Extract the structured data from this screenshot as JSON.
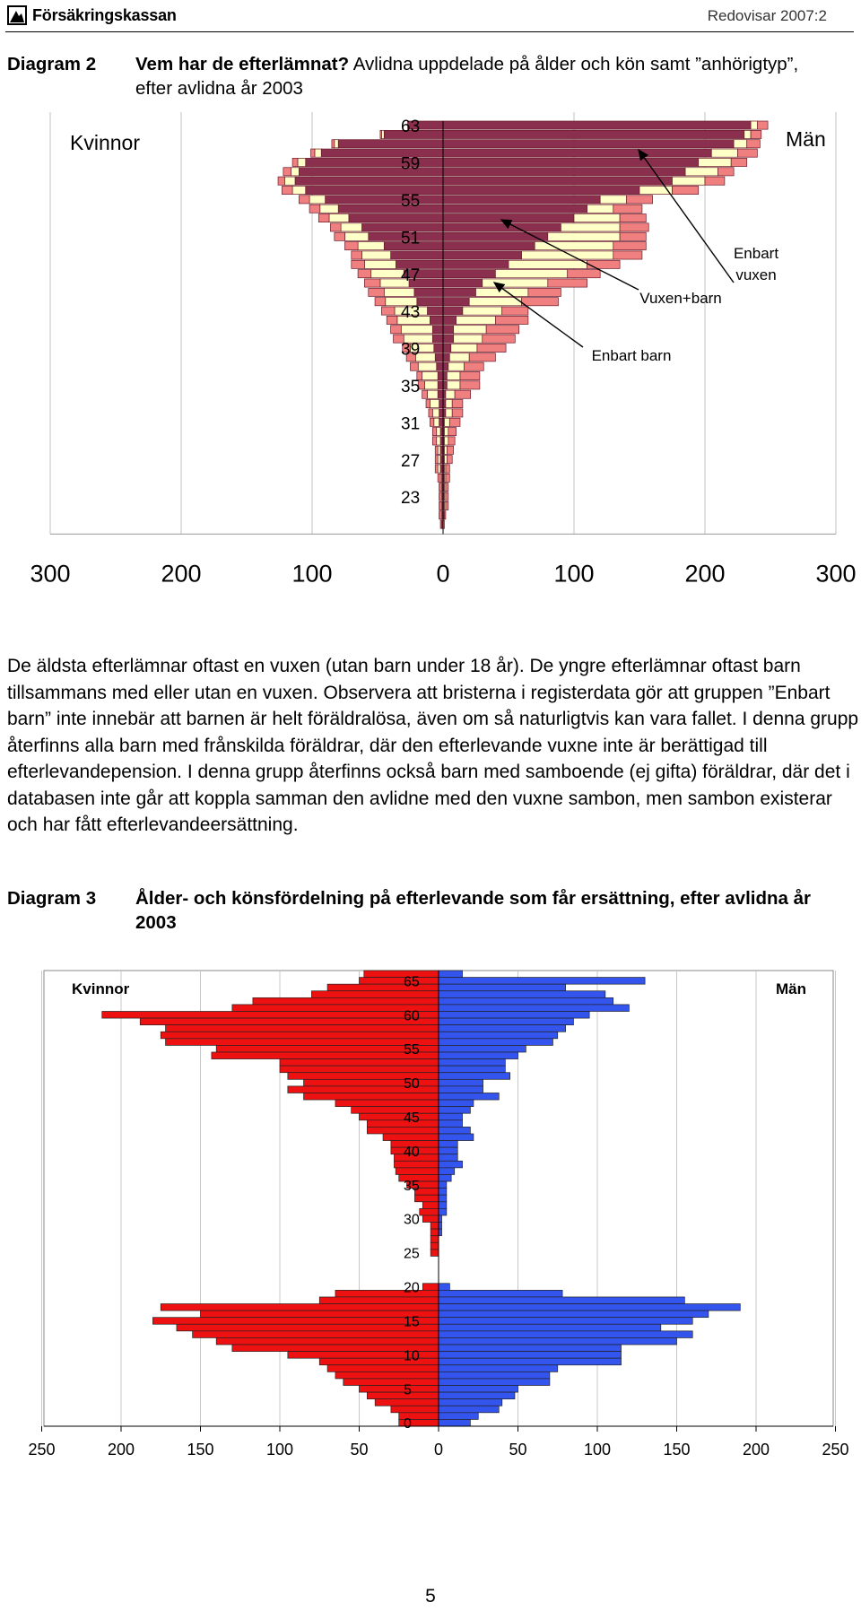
{
  "header": {
    "logo_text": "Försäkringskassan",
    "report_id": "Redovisar 2007:2"
  },
  "diagram2": {
    "number": "Diagram 2",
    "title_bold": "Vem har de efterlämnat?",
    "title_rest": " Avlidna uppdelade på ålder och kön samt ”anhörigtyp”, efter avlidna år 2003"
  },
  "diagram3": {
    "number": "Diagram 3",
    "title": "Ålder- och könsfördelning på efterlevande som får ersättning, efter avlidna år 2003"
  },
  "body_text": "De äldsta efterlämnar oftast en vuxen (utan barn under 18 år). De yngre efterlämnar oftast barn tillsammans med eller utan en vuxen. Observera att bristerna i registerdata gör att gruppen ”Enbart barn” inte innebär att barnen är helt föräldralösa, även om så naturligtvis kan vara fallet. I denna grupp återfinns alla barn med frånskilda föräldrar, där den efterlevande vuxne inte är berättigad till efterlevandepension. I denna grupp återfinns också barn med samboende (ej gifta) föräldrar, där det i databasen inte går att koppla samman den avlidne med den vuxne sambon, men sambon existerar och har fått efterlevandeersättning.",
  "page_number": "5",
  "colors": {
    "enbart_vuxen": "#8B2F4E",
    "vuxen_barn": "#FFFFC8",
    "enbart_barn": "#F08080",
    "kvinnor_d3": "#EE1111",
    "man_d3": "#3355EE"
  },
  "chart_data": [
    {
      "type": "bar",
      "orientation": "horizontal-population-pyramid",
      "stacked": true,
      "left_label": "Kvinnor",
      "right_label": "Män",
      "y_tick_labels": [
        "63",
        "59",
        "55",
        "51",
        "47",
        "43",
        "39",
        "35",
        "31",
        "27",
        "23"
      ],
      "x_tick_labels": [
        "300",
        "200",
        "100",
        "0",
        "100",
        "200",
        "300"
      ],
      "xlim": [
        -300,
        300
      ],
      "annotations": [
        "Enbart vuxen",
        "Vuxen+barn",
        "Enbart barn"
      ],
      "categories": [
        63,
        62,
        61,
        60,
        59,
        58,
        57,
        56,
        55,
        54,
        53,
        52,
        51,
        50,
        49,
        48,
        47,
        46,
        45,
        44,
        43,
        42,
        41,
        40,
        39,
        38,
        37,
        36,
        35,
        34,
        33,
        32,
        31,
        30,
        29,
        28,
        27,
        26,
        25,
        24,
        23,
        22,
        21,
        20
      ],
      "series": [
        {
          "name": "Enbart vuxen",
          "kvinnor": [
            27,
            45,
            80,
            93,
            105,
            110,
            113,
            105,
            90,
            80,
            72,
            62,
            57,
            45,
            40,
            36,
            30,
            26,
            22,
            20,
            12,
            10,
            8,
            8,
            7,
            6,
            5,
            4,
            4,
            4,
            3,
            3,
            3,
            2,
            2,
            2,
            2,
            2,
            1,
            1,
            1,
            1,
            1,
            1
          ],
          "man": [
            235,
            230,
            222,
            205,
            195,
            185,
            175,
            150,
            120,
            110,
            100,
            90,
            80,
            70,
            60,
            50,
            40,
            30,
            25,
            20,
            15,
            10,
            8,
            8,
            6,
            5,
            4,
            3,
            3,
            2,
            2,
            2,
            1,
            1,
            1,
            1,
            1,
            1,
            1,
            1,
            1,
            1,
            1,
            0
          ]
        },
        {
          "name": "Vuxen+barn",
          "kvinnor": [
            0,
            2,
            3,
            5,
            6,
            6,
            8,
            10,
            12,
            14,
            15,
            16,
            18,
            20,
            22,
            24,
            25,
            22,
            23,
            24,
            25,
            25,
            24,
            22,
            18,
            15,
            14,
            12,
            10,
            8,
            7,
            5,
            4,
            3,
            3,
            2,
            2,
            2,
            1,
            1,
            1,
            1,
            1,
            0
          ],
          "man": [
            5,
            5,
            10,
            20,
            25,
            25,
            25,
            25,
            20,
            20,
            35,
            45,
            55,
            60,
            70,
            60,
            55,
            50,
            40,
            40,
            30,
            30,
            25,
            22,
            20,
            15,
            12,
            10,
            10,
            7,
            5,
            5,
            4,
            3,
            3,
            2,
            2,
            1,
            1,
            1,
            1,
            1,
            0,
            0
          ]
        },
        {
          "name": "Enbart barn",
          "kvinnor": [
            0,
            1,
            2,
            3,
            4,
            6,
            5,
            8,
            8,
            8,
            8,
            8,
            8,
            10,
            8,
            10,
            10,
            12,
            12,
            8,
            10,
            8,
            8,
            8,
            6,
            7,
            6,
            4,
            5,
            4,
            3,
            3,
            3,
            3,
            3,
            2,
            2,
            2,
            2,
            1,
            1,
            1,
            1,
            1
          ],
          "man": [
            8,
            8,
            10,
            15,
            12,
            12,
            15,
            20,
            20,
            22,
            20,
            22,
            20,
            25,
            22,
            25,
            25,
            30,
            25,
            28,
            20,
            25,
            25,
            25,
            22,
            20,
            15,
            15,
            15,
            12,
            8,
            8,
            8,
            6,
            5,
            5,
            4,
            3,
            3,
            2,
            2,
            2,
            1,
            1
          ]
        }
      ]
    },
    {
      "type": "bar",
      "orientation": "horizontal-population-pyramid",
      "left_label": "Kvinnor",
      "right_label": "Män",
      "y_tick_labels": [
        "65",
        "60",
        "55",
        "50",
        "45",
        "40",
        "35",
        "30",
        "25",
        "20",
        "15",
        "10",
        "5",
        "0"
      ],
      "x_tick_labels": [
        "250",
        "200",
        "150",
        "100",
        "50",
        "0",
        "50",
        "100",
        "150",
        "200",
        "250"
      ],
      "xlim": [
        -250,
        250
      ],
      "categories": [
        66,
        65,
        64,
        63,
        62,
        61,
        60,
        59,
        58,
        57,
        56,
        55,
        54,
        53,
        52,
        51,
        50,
        49,
        48,
        47,
        46,
        45,
        44,
        43,
        42,
        41,
        40,
        39,
        38,
        37,
        36,
        35,
        34,
        33,
        32,
        31,
        30,
        29,
        28,
        27,
        26,
        25,
        24,
        23,
        22,
        21,
        20,
        19,
        18,
        17,
        16,
        15,
        14,
        13,
        12,
        11,
        10,
        9,
        8,
        7,
        6,
        5,
        4,
        3,
        2,
        1,
        0
      ],
      "series": [
        {
          "name": "Kvinnor",
          "values": [
            47,
            50,
            70,
            80,
            117,
            130,
            212,
            188,
            172,
            175,
            172,
            140,
            143,
            100,
            100,
            95,
            85,
            95,
            85,
            65,
            55,
            50,
            45,
            45,
            35,
            30,
            30,
            28,
            28,
            27,
            25,
            20,
            15,
            15,
            10,
            12,
            10,
            5,
            5,
            5,
            5,
            5,
            0,
            0,
            0,
            0,
            10,
            65,
            75,
            175,
            150,
            180,
            165,
            155,
            140,
            130,
            95,
            75,
            70,
            65,
            60,
            50,
            45,
            40,
            30,
            25,
            25
          ]
        },
        {
          "name": "Män",
          "values": [
            15,
            130,
            80,
            105,
            110,
            120,
            95,
            85,
            80,
            75,
            72,
            55,
            50,
            42,
            42,
            45,
            28,
            28,
            38,
            22,
            20,
            15,
            15,
            20,
            22,
            12,
            12,
            12,
            15,
            10,
            8,
            5,
            5,
            5,
            5,
            5,
            2,
            2,
            2,
            0,
            0,
            0,
            0,
            0,
            0,
            0,
            7,
            78,
            155,
            190,
            170,
            160,
            140,
            160,
            150,
            115,
            115,
            115,
            75,
            70,
            70,
            50,
            48,
            40,
            38,
            25,
            20
          ]
        }
      ]
    }
  ]
}
